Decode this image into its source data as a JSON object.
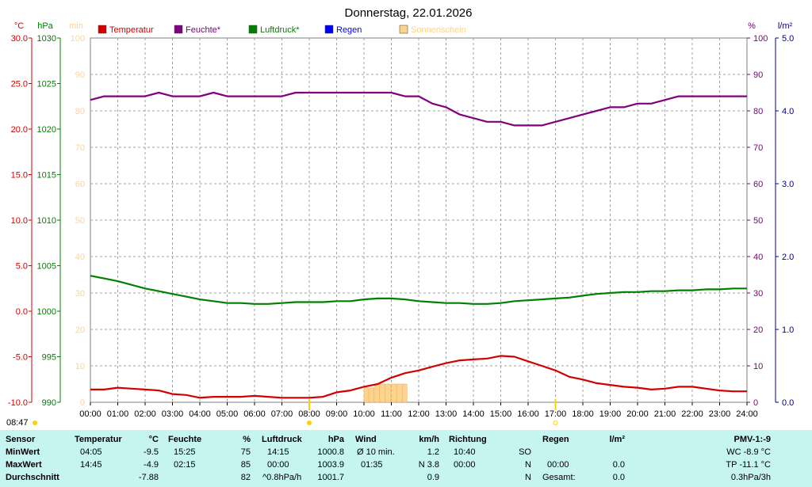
{
  "chart_data": {
    "type": "line",
    "title": "Donnerstag, 22.01.2026",
    "legend": [
      {
        "label": "Temperatur",
        "color": "#d40000"
      },
      {
        "label": "Feuchte*",
        "color": "#800080"
      },
      {
        "label": "Luftdruck*",
        "color": "#008000"
      },
      {
        "label": "Regen",
        "color": "#0000ff"
      },
      {
        "label": "Sonnenschein",
        "color": "#ffd38a"
      }
    ],
    "axes": {
      "temperature": {
        "unit": "°C",
        "range": [
          -10,
          30
        ],
        "ticks": [
          "30.0",
          "25.0",
          "20.0",
          "15.0",
          "10.0",
          "5.0",
          "0.0",
          "-5.0",
          "-10.0"
        ],
        "color": "#d40000"
      },
      "pressure": {
        "unit": "hPa",
        "range": [
          990,
          1030
        ],
        "ticks": [
          "1030",
          "1025",
          "1020",
          "1015",
          "1010",
          "1005",
          "1000",
          "995",
          "990"
        ],
        "color": "#008000"
      },
      "sunshine": {
        "unit": "min",
        "range": [
          0,
          100
        ],
        "ticks": [
          "100",
          "90",
          "80",
          "70",
          "60",
          "50",
          "40",
          "30",
          "20",
          "10",
          "0"
        ],
        "color": "#ffd38a"
      },
      "humidity": {
        "unit": "%",
        "range": [
          0,
          100
        ],
        "ticks": [
          "100",
          "90",
          "80",
          "70",
          "60",
          "50",
          "40",
          "30",
          "20",
          "10",
          "0"
        ],
        "color": "#800080"
      },
      "rain": {
        "unit": "l/m²",
        "range": [
          0,
          5
        ],
        "ticks": [
          "5.0",
          "4.0",
          "3.0",
          "2.0",
          "1.0",
          "0.0"
        ],
        "color": "#000080"
      }
    },
    "x_ticks": [
      "00:00",
      "01:00",
      "02:00",
      "03:00",
      "04:00",
      "05:00",
      "06:00",
      "07:00",
      "08:00",
      "09:00",
      "10:00",
      "11:00",
      "12:00",
      "13:00",
      "14:00",
      "15:00",
      "16:00",
      "17:00",
      "18:00",
      "19:00",
      "20:00",
      "21:00",
      "22:00",
      "23:00",
      "24:00"
    ],
    "sunrise_label": "08:47",
    "sunrise_hour": 8.0,
    "sunset_hour": 17.0,
    "grid": true,
    "series": [
      {
        "name": "Temperatur",
        "color": "#d40000",
        "x": [
          0,
          0.5,
          1,
          1.5,
          2,
          2.5,
          3,
          3.5,
          4,
          4.5,
          5,
          5.5,
          6,
          6.5,
          7,
          7.5,
          8,
          8.5,
          9,
          9.5,
          10,
          10.5,
          11,
          11.5,
          12,
          12.5,
          13,
          13.5,
          14,
          14.5,
          15,
          15.5,
          16,
          16.5,
          17,
          17.5,
          18,
          18.5,
          19,
          19.5,
          20,
          20.5,
          21,
          21.5,
          22,
          22.5,
          23,
          23.5,
          24
        ],
        "y": [
          -8.6,
          -8.6,
          -8.4,
          -8.5,
          -8.6,
          -8.7,
          -9.1,
          -9.2,
          -9.5,
          -9.4,
          -9.4,
          -9.4,
          -9.3,
          -9.4,
          -9.5,
          -9.5,
          -9.5,
          -9.4,
          -8.9,
          -8.7,
          -8.3,
          -8.0,
          -7.3,
          -6.8,
          -6.5,
          -6.1,
          -5.7,
          -5.4,
          -5.3,
          -5.2,
          -4.9,
          -5.0,
          -5.5,
          -6.0,
          -6.5,
          -7.2,
          -7.5,
          -7.9,
          -8.1,
          -8.3,
          -8.4,
          -8.6,
          -8.5,
          -8.3,
          -8.3,
          -8.5,
          -8.7,
          -8.8,
          -8.8
        ]
      },
      {
        "name": "Feuchte*",
        "color": "#800080",
        "x": [
          0,
          0.5,
          1,
          1.5,
          2,
          2.5,
          3,
          3.5,
          4,
          4.5,
          5,
          5.5,
          6,
          6.5,
          7,
          7.5,
          8,
          8.5,
          9,
          9.5,
          10,
          10.5,
          11,
          11.5,
          12,
          12.5,
          13,
          13.5,
          14,
          14.5,
          15,
          15.5,
          16,
          16.5,
          17,
          17.5,
          18,
          18.5,
          19,
          19.5,
          20,
          20.5,
          21,
          21.5,
          22,
          22.5,
          23,
          23.5,
          24
        ],
        "y": [
          83,
          84,
          84,
          84,
          84,
          85,
          84,
          84,
          84,
          85,
          84,
          84,
          84,
          84,
          84,
          85,
          85,
          85,
          85,
          85,
          85,
          85,
          85,
          84,
          84,
          82,
          81,
          79,
          78,
          77,
          77,
          76,
          76,
          76,
          77,
          78,
          79,
          80,
          81,
          81,
          82,
          82,
          83,
          84,
          84,
          84,
          84,
          84,
          84
        ]
      },
      {
        "name": "Luftdruck*",
        "color": "#008000",
        "x": [
          0,
          0.5,
          1,
          1.5,
          2,
          2.5,
          3,
          3.5,
          4,
          4.5,
          5,
          5.5,
          6,
          6.5,
          7,
          7.5,
          8,
          8.5,
          9,
          9.5,
          10,
          10.5,
          11,
          11.5,
          12,
          12.5,
          13,
          13.5,
          14,
          14.5,
          15,
          15.5,
          16,
          16.5,
          17,
          17.5,
          18,
          18.5,
          19,
          19.5,
          20,
          20.5,
          21,
          21.5,
          22,
          22.5,
          23,
          23.5,
          24
        ],
        "y": [
          1003.9,
          1003.6,
          1003.3,
          1002.9,
          1002.5,
          1002.2,
          1001.9,
          1001.6,
          1001.3,
          1001.1,
          1000.9,
          1000.9,
          1000.8,
          1000.8,
          1000.9,
          1001.0,
          1001.0,
          1001.0,
          1001.1,
          1001.1,
          1001.3,
          1001.4,
          1001.4,
          1001.3,
          1001.1,
          1001.0,
          1000.9,
          1000.9,
          1000.8,
          1000.8,
          1000.9,
          1001.1,
          1001.2,
          1001.3,
          1001.4,
          1001.5,
          1001.7,
          1001.9,
          1002.0,
          1002.1,
          1002.1,
          1002.2,
          1002.2,
          1002.3,
          1002.3,
          1002.4,
          1002.4,
          1002.5,
          1002.5
        ]
      },
      {
        "name": "Sonnenschein",
        "color": "#ffd38a",
        "x": [
          10.0,
          10.2,
          10.4,
          10.6,
          10.8,
          11.0,
          11.2,
          11.4
        ],
        "y": [
          4,
          4,
          5,
          5,
          5,
          5,
          5,
          5
        ]
      }
    ]
  },
  "table": {
    "headers": {
      "sensor": "Sensor",
      "temp": "Temperatur",
      "temp_unit": "°C",
      "feuchte": "Feuchte",
      "feuchte_unit": "%",
      "druck": "Luftdruck",
      "druck_unit": "hPa",
      "wind": "Wind",
      "wind_unit": "km/h",
      "richtung": "Richtung",
      "regen": "Regen",
      "regen_unit": "l/m²",
      "pmv": "PMV-1:-9"
    },
    "min": {
      "label": "MinWert",
      "temp_time": "04:05",
      "temp_val": "-9.5",
      "feuchte_time": "15:25",
      "feuchte_val": "75",
      "druck_time": "14:15",
      "druck_val": "1000.8",
      "wind_label": "Ø 10 min.",
      "wind_val": "1.2",
      "richtung_time": "10:40",
      "richtung_val": "SO",
      "pmv": "WC -8.9 °C"
    },
    "max": {
      "label": "MaxWert",
      "temp_time": "14:45",
      "temp_val": "-4.9",
      "feuchte_time": "02:15",
      "feuchte_val": "85",
      "druck_time": "00:00",
      "druck_val": "1003.9",
      "wind_time": "01:35",
      "wind_val": "N 3.8",
      "richtung_time": "00:00",
      "richtung_val": "N",
      "regen_time": "00:00",
      "regen_val": "0.0",
      "pmv": "TP -11.1 °C"
    },
    "avg": {
      "label": "Durchschnitt",
      "temp_val": "-7.88",
      "feuchte_val": "82",
      "druck_trend": "^0.8hPa/h",
      "druck_val": "1001.7",
      "wind_val": "0.9",
      "richtung_val": "N",
      "regen_label": "Gesamt:",
      "regen_val": "0.0",
      "pmv": "0.3hPa/3h"
    }
  }
}
